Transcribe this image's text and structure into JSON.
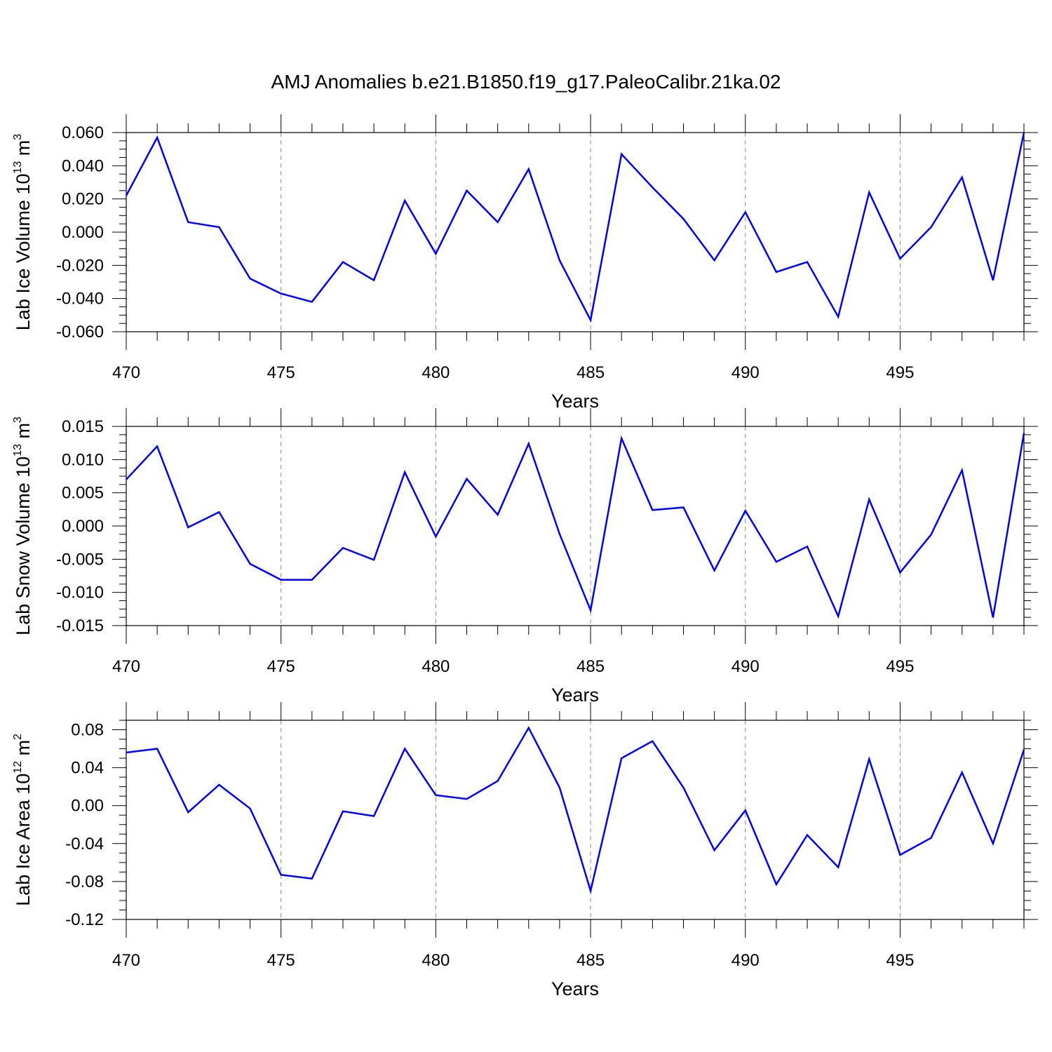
{
  "title": "AMJ Anomalies b.e21.B1850.f19_g17.PaleoCalibr.21ka.02",
  "chart_data": [
    {
      "type": "line",
      "ylabel": {
        "text": "Lab Ice Volume 10",
        "exp": "13",
        "unit": " m",
        "unit_exp": "3"
      },
      "xlabel": "Years",
      "xlim": [
        470,
        499
      ],
      "ylim": [
        -0.06,
        0.06
      ],
      "xticks": [
        "470",
        "475",
        "480",
        "485",
        "490",
        "495"
      ],
      "yticks": [
        "0.060",
        "0.040",
        "0.020",
        "0.000",
        "-0.020",
        "-0.040",
        "-0.060"
      ],
      "grid": "vertical dashed at major x ticks",
      "color": "#0000ff",
      "x": [
        470,
        471,
        472,
        473,
        474,
        475,
        476,
        477,
        478,
        479,
        480,
        481,
        482,
        483,
        484,
        485,
        486,
        487,
        488,
        489,
        490,
        491,
        492,
        493,
        494,
        495,
        496,
        497,
        498,
        499
      ],
      "y": [
        0.022,
        0.057,
        0.006,
        0.003,
        -0.028,
        -0.037,
        -0.042,
        -0.018,
        -0.029,
        0.019,
        -0.013,
        0.025,
        0.006,
        0.038,
        -0.017,
        -0.053,
        0.047,
        0.027,
        0.008,
        -0.017,
        0.012,
        -0.024,
        -0.018,
        -0.051,
        0.024,
        -0.016,
        0.003,
        0.033,
        -0.029,
        0.06
      ]
    },
    {
      "type": "line",
      "ylabel": {
        "text": "Lab Snow Volume 10",
        "exp": "13",
        "unit": " m",
        "unit_exp": "3"
      },
      "xlabel": "Years",
      "xlim": [
        470,
        499
      ],
      "ylim": [
        -0.015,
        0.015
      ],
      "xticks": [
        "470",
        "475",
        "480",
        "485",
        "490",
        "495"
      ],
      "yticks": [
        "0.015",
        "0.010",
        "0.005",
        "0.000",
        "-0.005",
        "-0.010",
        "-0.015"
      ],
      "grid": "vertical dashed at major x ticks",
      "color": "#0000ff",
      "x": [
        470,
        471,
        472,
        473,
        474,
        475,
        476,
        477,
        478,
        479,
        480,
        481,
        482,
        483,
        484,
        485,
        486,
        487,
        488,
        489,
        490,
        491,
        492,
        493,
        494,
        495,
        496,
        497,
        498,
        499
      ],
      "y": [
        0.007,
        0.012,
        -0.0002,
        0.0021,
        -0.0057,
        -0.0081,
        -0.0081,
        -0.0033,
        -0.0051,
        0.0081,
        -0.0016,
        0.0071,
        0.0017,
        0.0124,
        -0.0012,
        -0.0127,
        0.0132,
        0.0024,
        0.0028,
        -0.0067,
        0.0023,
        -0.0054,
        -0.0031,
        -0.0136,
        0.004,
        -0.007,
        -0.0013,
        0.0084,
        -0.0138,
        0.014
      ]
    },
    {
      "type": "line",
      "ylabel": {
        "text": "Lab Ice Area 10",
        "exp": "12",
        "unit": " m",
        "unit_exp": "2"
      },
      "xlabel": "Years",
      "xlim": [
        470,
        499
      ],
      "ylim": [
        -0.12,
        0.09
      ],
      "xticks": [
        "470",
        "475",
        "480",
        "485",
        "490",
        "495"
      ],
      "yticks": [
        "0.08",
        "0.04",
        "0.00",
        "-0.04",
        "-0.08",
        "-0.12"
      ],
      "grid": "vertical dashed at major x ticks",
      "color": "#0000ff",
      "x": [
        470,
        471,
        472,
        473,
        474,
        475,
        476,
        477,
        478,
        479,
        480,
        481,
        482,
        483,
        484,
        485,
        486,
        487,
        488,
        489,
        490,
        491,
        492,
        493,
        494,
        495,
        496,
        497,
        498,
        499
      ],
      "y": [
        0.056,
        0.06,
        -0.007,
        0.022,
        -0.003,
        -0.073,
        -0.077,
        -0.006,
        -0.011,
        0.06,
        0.011,
        0.007,
        0.026,
        0.082,
        0.019,
        -0.09,
        0.05,
        0.068,
        0.019,
        -0.047,
        -0.005,
        -0.083,
        -0.031,
        -0.065,
        0.049,
        -0.052,
        -0.034,
        0.035,
        -0.04,
        0.059
      ]
    }
  ]
}
